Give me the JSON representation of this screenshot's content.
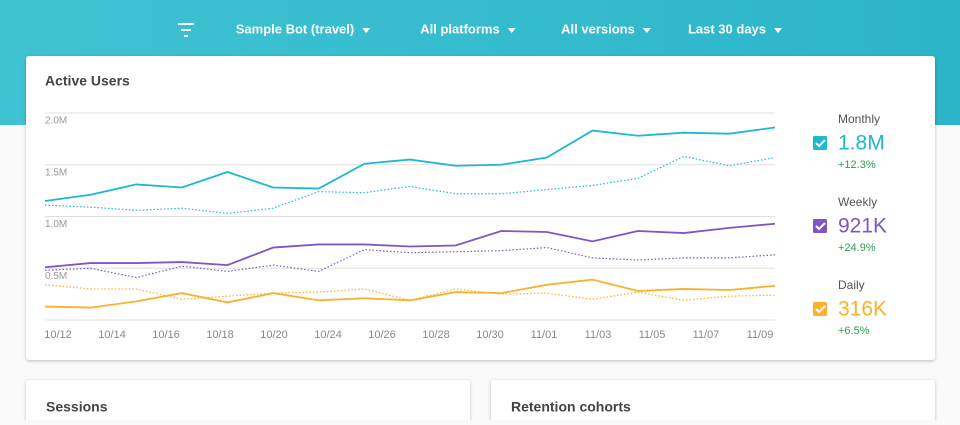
{
  "header": {
    "filters": [
      "Sample Bot (travel)",
      "All platforms",
      "All versions",
      "Last 30 days"
    ]
  },
  "chart_data": {
    "type": "line",
    "title": "Active Users",
    "xtick_labels": [
      "10/12",
      "10/14",
      "10/16",
      "10/18",
      "10/20",
      "10/24",
      "10/26",
      "10/28",
      "10/30",
      "11/01",
      "11/03",
      "11/05",
      "11/07",
      "11/09"
    ],
    "ylim": [
      0,
      2.0
    ],
    "yticks": [
      {
        "value": 0.5,
        "label": "0.5M"
      },
      {
        "value": 1.0,
        "label": "1.0M"
      },
      {
        "value": 1.5,
        "label": "1.5M"
      },
      {
        "value": 2.0,
        "label": "2.0M"
      }
    ],
    "grid": true,
    "series": [
      {
        "name": "Monthly",
        "color": "#1eb8cf",
        "total_label": "1.8M",
        "change": "+12.3%",
        "values": [
          1.15,
          1.21,
          1.31,
          1.28,
          1.43,
          1.28,
          1.27,
          1.51,
          1.55,
          1.49,
          1.5,
          1.57,
          1.83,
          1.78,
          1.81,
          1.8,
          1.86
        ],
        "previous_values": [
          1.11,
          1.09,
          1.06,
          1.08,
          1.03,
          1.08,
          1.24,
          1.23,
          1.29,
          1.22,
          1.22,
          1.26,
          1.3,
          1.37,
          1.58,
          1.49,
          1.57
        ]
      },
      {
        "name": "Weekly",
        "color": "#7e57c2",
        "total_label": "921K",
        "change": "+24.9%",
        "values": [
          0.51,
          0.55,
          0.55,
          0.56,
          0.53,
          0.7,
          0.73,
          0.73,
          0.71,
          0.72,
          0.86,
          0.85,
          0.76,
          0.86,
          0.84,
          0.89,
          0.93
        ],
        "previous_values": [
          0.48,
          0.5,
          0.41,
          0.52,
          0.47,
          0.53,
          0.47,
          0.68,
          0.65,
          0.66,
          0.67,
          0.7,
          0.6,
          0.58,
          0.6,
          0.6,
          0.63
        ]
      },
      {
        "name": "Daily",
        "color": "#fbb12b",
        "total_label": "316K",
        "change": "+6.5%",
        "values": [
          0.13,
          0.12,
          0.18,
          0.26,
          0.17,
          0.26,
          0.19,
          0.21,
          0.19,
          0.27,
          0.26,
          0.34,
          0.39,
          0.28,
          0.3,
          0.29,
          0.33
        ],
        "previous_values": [
          0.34,
          0.3,
          0.3,
          0.2,
          0.23,
          0.26,
          0.27,
          0.3,
          0.19,
          0.3,
          0.25,
          0.26,
          0.2,
          0.27,
          0.19,
          0.23,
          0.24
        ]
      }
    ]
  },
  "cards": [
    "Sessions",
    "Retention cohorts"
  ]
}
